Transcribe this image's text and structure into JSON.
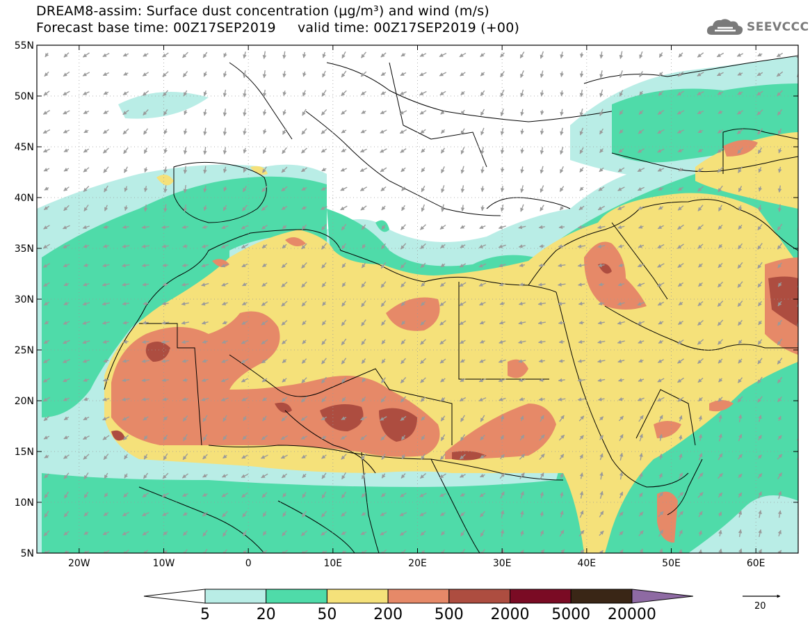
{
  "title": {
    "line1": "DREAM8-assim: Surface dust concentration (µg/m³) and wind (m/s)",
    "line2": "Forecast base time: 00Z17SEP2019     valid time: 00Z17SEP2019 (+00)"
  },
  "logo": {
    "text": "SEEVCCC",
    "icon": "cloud-logo-icon"
  },
  "axes": {
    "lat_labels": [
      "55N",
      "50N",
      "45N",
      "40N",
      "35N",
      "30N",
      "25N",
      "20N",
      "15N",
      "10N",
      "5N"
    ],
    "lon_labels": [
      "20W",
      "10W",
      "0",
      "10E",
      "20E",
      "30E",
      "40E",
      "50E",
      "60E"
    ],
    "lat_range": [
      5,
      55
    ],
    "lon_range": [
      -25,
      65
    ]
  },
  "colorbar": {
    "labels": [
      "5",
      "20",
      "50",
      "200",
      "500",
      "2000",
      "5000",
      "20000"
    ],
    "colors": [
      "#ffffff",
      "#b9ede6",
      "#4fdba9",
      "#f5e17a",
      "#e68968",
      "#ad4d40",
      "#7a0b24",
      "#3a2616",
      "#8e6aa3"
    ]
  },
  "wind_reference": {
    "label": "20"
  }
}
